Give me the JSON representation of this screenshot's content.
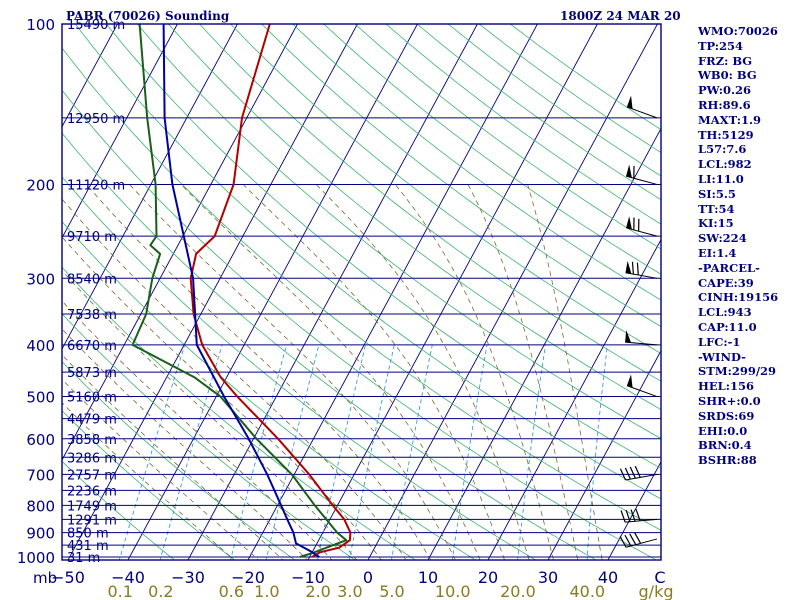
{
  "header": {
    "station_title": "PABR (70026) Sounding",
    "valid_time": "1800Z 24 MAR 20"
  },
  "chart_data": {
    "type": "skew-t log-p sounding",
    "pressure_axis": {
      "unit_label": "mb",
      "ticks": [
        100,
        200,
        300,
        400,
        500,
        600,
        700,
        800,
        900,
        1000
      ],
      "range": [
        1050,
        100
      ],
      "scale": "log"
    },
    "height_labels": [
      {
        "p": 100,
        "label": "15490 m"
      },
      {
        "p": 150,
        "label": "12950 m"
      },
      {
        "p": 200,
        "label": "11120 m"
      },
      {
        "p": 250,
        "label": "9710 m"
      },
      {
        "p": 300,
        "label": "8540 m"
      },
      {
        "p": 350,
        "label": "7538 m"
      },
      {
        "p": 400,
        "label": "6670 m"
      },
      {
        "p": 450,
        "label": "5873 m"
      },
      {
        "p": 500,
        "label": "5160 m"
      },
      {
        "p": 550,
        "label": "4479 m"
      },
      {
        "p": 600,
        "label": "3858 m"
      },
      {
        "p": 650,
        "label": "3286 m"
      },
      {
        "p": 700,
        "label": "2757 m"
      },
      {
        "p": 750,
        "label": "2236 m"
      },
      {
        "p": 800,
        "label": "1749 m"
      },
      {
        "p": 850,
        "label": "1291 m"
      },
      {
        "p": 900,
        "label": "850 m"
      },
      {
        "p": 950,
        "label": "431 m"
      },
      {
        "p": 1000,
        "label": "31 m"
      }
    ],
    "temperature_axis": {
      "unit_label": "C",
      "ticks": [
        -50,
        -40,
        -30,
        -20,
        -10,
        0,
        10,
        20,
        30,
        40
      ],
      "range_at_bottom": [
        -52,
        50
      ]
    },
    "mixing_ratio_axis": {
      "unit_label": "g/kg",
      "ticks": [
        0.1,
        0.2,
        0.6,
        1.0,
        2.0,
        3.0,
        5.0,
        10.0,
        20.0,
        40.0
      ]
    },
    "series": [
      {
        "kind": "temperature",
        "color": "#b00000",
        "points": [
          [
            1000,
            -9.6
          ],
          [
            980,
            -8.7
          ],
          [
            960,
            -5.9
          ],
          [
            930,
            -4.8
          ],
          [
            900,
            -5.4
          ],
          [
            850,
            -7.6
          ],
          [
            800,
            -10.8
          ],
          [
            700,
            -17.5
          ],
          [
            600,
            -25.9
          ],
          [
            500,
            -36.5
          ],
          [
            460,
            -41.0
          ],
          [
            400,
            -47.0
          ],
          [
            350,
            -51.2
          ],
          [
            300,
            -54.9
          ],
          [
            270,
            -56.2
          ],
          [
            250,
            -54.7
          ],
          [
            200,
            -56.2
          ],
          [
            150,
            -60.8
          ],
          [
            100,
            -64.6
          ]
        ]
      },
      {
        "kind": "dewpoint",
        "color": "#1a5e1a",
        "points": [
          [
            1000,
            -11.6
          ],
          [
            980,
            -9.6
          ],
          [
            960,
            -8.0
          ],
          [
            930,
            -5.4
          ],
          [
            900,
            -7.6
          ],
          [
            850,
            -10.6
          ],
          [
            800,
            -13.8
          ],
          [
            700,
            -20.4
          ],
          [
            600,
            -29.5
          ],
          [
            500,
            -39.3
          ],
          [
            460,
            -45.4
          ],
          [
            400,
            -58.6
          ],
          [
            350,
            -59.1
          ],
          [
            300,
            -61.3
          ],
          [
            270,
            -62.2
          ],
          [
            260,
            -64.6
          ],
          [
            250,
            -64.4
          ],
          [
            200,
            -69.2
          ],
          [
            150,
            -76.6
          ],
          [
            100,
            -86.3
          ]
        ]
      },
      {
        "kind": "parcel",
        "color": "#0000a0",
        "points": [
          [
            1000,
            -8.4
          ],
          [
            975,
            -10.4
          ],
          [
            943,
            -13.5
          ],
          [
            900,
            -14.9
          ],
          [
            850,
            -17.1
          ],
          [
            800,
            -19.4
          ],
          [
            700,
            -24.5
          ],
          [
            600,
            -30.8
          ],
          [
            500,
            -38.7
          ],
          [
            400,
            -47.9
          ],
          [
            300,
            -54.5
          ],
          [
            200,
            -66.4
          ],
          [
            150,
            -73.7
          ],
          [
            100,
            -82.3
          ]
        ]
      }
    ],
    "wind_barbs": [
      {
        "p": 150,
        "dir": 290,
        "speed": 55
      },
      {
        "p": 200,
        "dir": 285,
        "speed": 60
      },
      {
        "p": 250,
        "dir": 285,
        "speed": 75
      },
      {
        "p": 300,
        "dir": 280,
        "speed": 70
      },
      {
        "p": 400,
        "dir": 275,
        "speed": 55
      },
      {
        "p": 500,
        "dir": 290,
        "speed": 50
      },
      {
        "p": 700,
        "dir": 260,
        "speed": 40
      },
      {
        "p": 850,
        "dir": 265,
        "speed": 40
      },
      {
        "p": 925,
        "dir": 255,
        "speed": 45
      }
    ]
  },
  "sidebar": {
    "lines": [
      "WMO:70026",
      "TP:254",
      "FRZ: BG",
      "WB0: BG",
      "PW:0.26",
      "RH:89.6",
      "MAXT:1.9",
      "TH:5129",
      "L57:7.6",
      "LCL:982",
      "LI:11.0",
      "SI:5.5",
      "TT:54",
      "KI:15",
      "SW:224",
      "EI:1.4",
      "-PARCEL-",
      "CAPE:39",
      "CINH:19156",
      "LCL:943",
      "CAP:11.0",
      "LFC:-1",
      "-WIND-",
      "STM:299/29",
      "HEL:156",
      "SHR+:0.0",
      "SRDS:69",
      "EHI:0.0",
      "BRN:0.4",
      "BSHR:88"
    ]
  },
  "colors": {
    "axis": "#000080",
    "isobar": "#000080",
    "isotherm": "#000080",
    "dry_adiabat": "#3cb371",
    "moist_adiabat": "#7a6a30",
    "mixing_ratio": "#3b9bd6",
    "mixing_ratio_labels": "#8a7a20"
  }
}
